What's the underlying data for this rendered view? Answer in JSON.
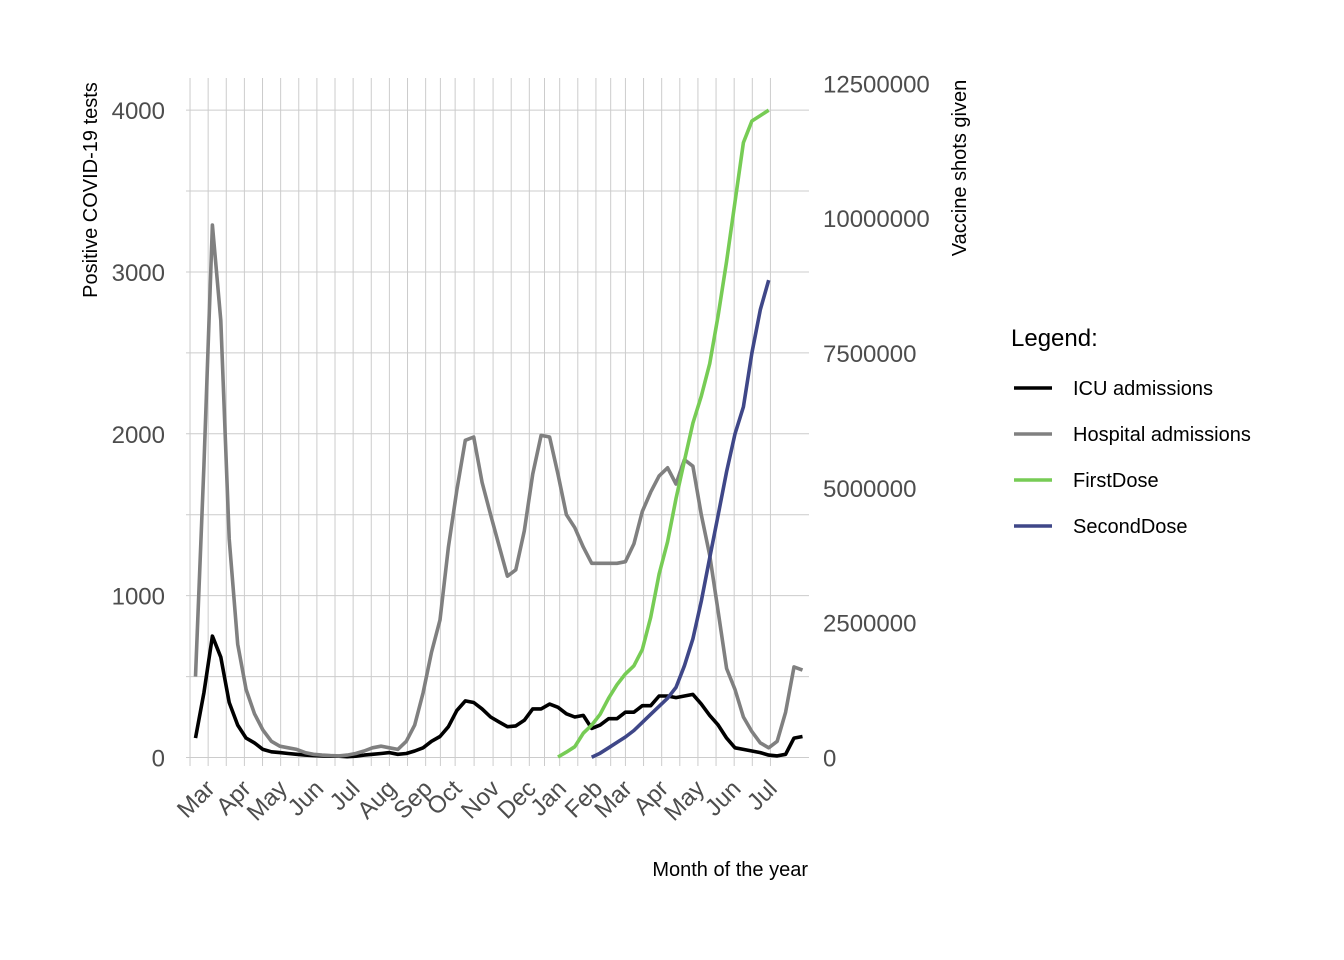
{
  "chart_data": {
    "type": "line",
    "title": "",
    "xlabel": "Month of the year",
    "ylabel_left": "Positive COVID-19 tests",
    "ylabel_right": "Vaccine shots given",
    "ylim_left": [
      0,
      4200
    ],
    "ylim_right": [
      0,
      12600000
    ],
    "yticks_left": [
      "0",
      "1000",
      "2000",
      "3000",
      "4000"
    ],
    "yticks_right": [
      "0",
      "2500000",
      "5000000",
      "7500000",
      "10000000",
      "12500000"
    ],
    "x_tick_labels": [
      "Mar",
      "Apr",
      "May",
      "Jun",
      "Jul",
      "Aug",
      "Sep",
      "Oct",
      "Nov",
      "Dec",
      "Jan",
      "Feb",
      "Mar",
      "Apr",
      "May",
      "Jun",
      "Jul"
    ],
    "x_tick_weeks": [
      2.5,
      6.8,
      11.1,
      15.4,
      19.7,
      24.0,
      28.3,
      31.8,
      36.3,
      40.6,
      44.2,
      48.5,
      52.0,
      56.3,
      60.6,
      64.9,
      69.2
    ],
    "grid": true,
    "legend_position": "right",
    "legend_title": "Legend:",
    "series": [
      {
        "name": "ICU admissions",
        "axis": "left",
        "color": "#000000",
        "start_week": 1,
        "values": [
          120,
          400,
          750,
          620,
          340,
          200,
          120,
          90,
          50,
          35,
          30,
          25,
          20,
          15,
          12,
          10,
          8,
          8,
          5,
          8,
          15,
          20,
          25,
          30,
          20,
          25,
          40,
          60,
          100,
          130,
          190,
          290,
          350,
          340,
          300,
          250,
          220,
          190,
          195,
          230,
          300,
          300,
          330,
          310,
          270,
          250,
          260,
          180,
          200,
          240,
          240,
          280,
          280,
          320,
          320,
          380,
          380,
          370,
          380,
          390,
          330,
          260,
          200,
          120,
          60,
          50,
          40,
          30,
          15,
          10,
          20,
          120,
          130
        ]
      },
      {
        "name": "Hospital admissions",
        "axis": "left",
        "color": "#808080",
        "start_week": 1,
        "values": [
          500,
          1800,
          3290,
          2700,
          1350,
          700,
          420,
          270,
          170,
          100,
          70,
          60,
          50,
          30,
          20,
          15,
          12,
          10,
          15,
          25,
          40,
          60,
          70,
          60,
          50,
          100,
          200,
          400,
          650,
          850,
          1300,
          1650,
          1960,
          1980,
          1700,
          1500,
          1310,
          1120,
          1160,
          1400,
          1750,
          1990,
          1980,
          1750,
          1500,
          1420,
          1300,
          1200,
          1200,
          1200,
          1200,
          1210,
          1320,
          1520,
          1640,
          1740,
          1790,
          1690,
          1840,
          1800,
          1500,
          1250,
          900,
          550,
          420,
          250,
          160,
          90,
          60,
          100,
          280,
          560,
          540
        ]
      },
      {
        "name": "FirstDose",
        "axis": "right",
        "color": "#77cc55",
        "start_week": 44,
        "values": [
          10000,
          100000,
          200000,
          450000,
          600000,
          800000,
          1100000,
          1350000,
          1550000,
          1700000,
          2000000,
          2600000,
          3400000,
          4000000,
          4800000,
          5500000,
          6200000,
          6700000,
          7300000,
          8200000,
          9200000,
          10300000,
          11400000,
          11800000,
          11900000,
          12000000
        ]
      },
      {
        "name": "SecondDose",
        "axis": "right",
        "color": "#3f4788",
        "start_week": 48,
        "values": [
          5000,
          80000,
          180000,
          280000,
          380000,
          500000,
          650000,
          800000,
          950000,
          1100000,
          1300000,
          1700000,
          2200000,
          2900000,
          3700000,
          4500000,
          5300000,
          6000000,
          6500000,
          7500000,
          8300000,
          8850000
        ]
      }
    ]
  }
}
